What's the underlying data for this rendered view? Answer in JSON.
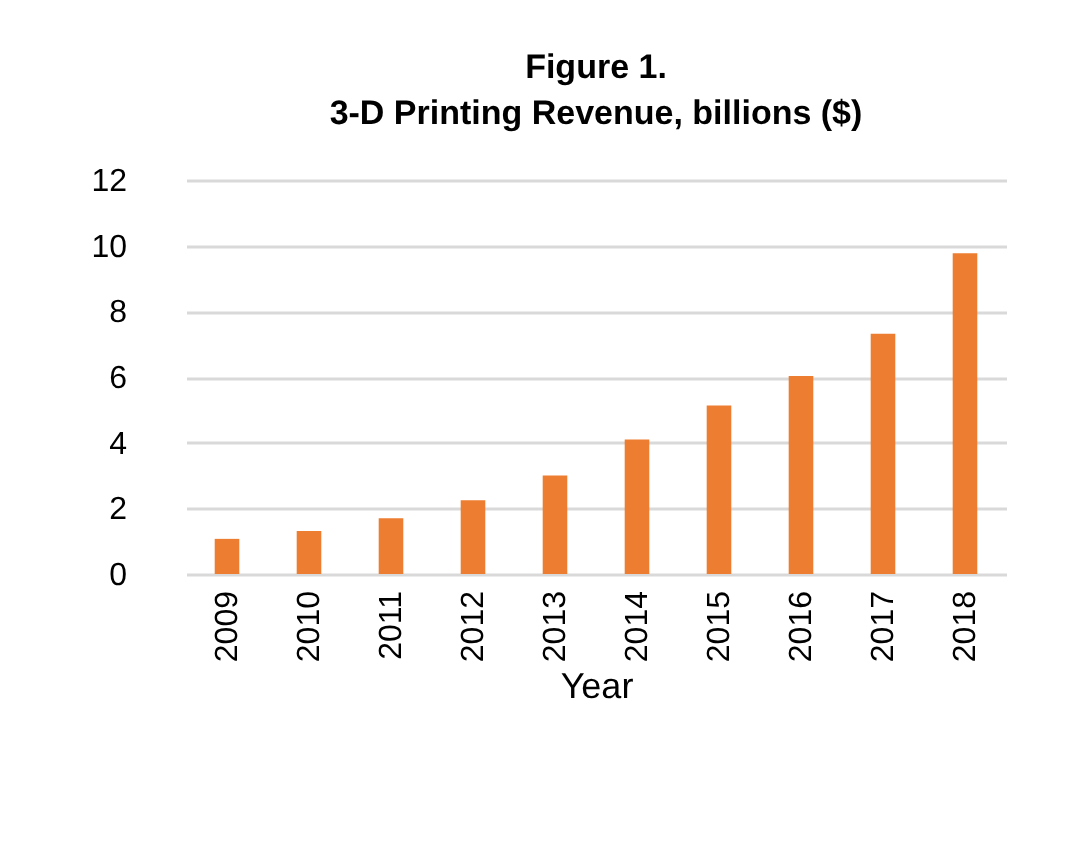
{
  "chart_data": {
    "type": "bar",
    "title": "Figure 1.",
    "subtitle": "3-D Printing Revenue, billions ($)",
    "xlabel": "Year",
    "categories": [
      "2009",
      "2010",
      "2011",
      "2012",
      "2013",
      "2014",
      "2015",
      "2016",
      "2017",
      "2018"
    ],
    "values": [
      1.07,
      1.31,
      1.7,
      2.25,
      3.0,
      4.1,
      5.13,
      6.03,
      7.32,
      9.77
    ],
    "color": "#ed7d31",
    "ylim": [
      0,
      12
    ],
    "yticks": [
      0,
      2,
      4,
      6,
      8,
      10,
      12
    ],
    "grid": "y"
  }
}
